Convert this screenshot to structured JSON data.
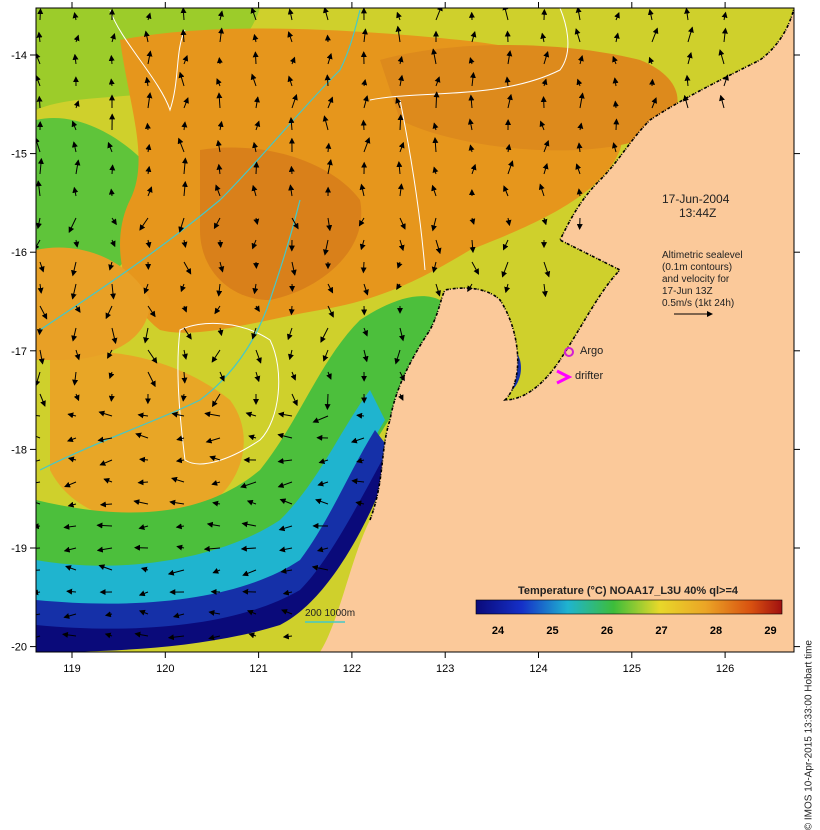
{
  "map": {
    "date": "17-Jun-2004",
    "time": "13:44Z",
    "altimetry_note": [
      "Altimetric sealevel",
      "(0.1m contours)",
      "and velocity for",
      "17-Jun 13Z",
      "0.5m/s (1kt 24h)"
    ],
    "legend_argo": "Argo",
    "legend_drifter": "drifter",
    "isobath_label": "200 1000m",
    "colorbar_title": "Temperature (°C) NOAA17_L3U 40% ql>=4",
    "colorbar_ticks": [
      "24",
      "25",
      "26",
      "27",
      "28",
      "29"
    ],
    "x_ticks": [
      "119",
      "120",
      "121",
      "122",
      "123",
      "124",
      "125",
      "126"
    ],
    "y_ticks": [
      "-14",
      "-15",
      "-16",
      "-17",
      "-18",
      "-19",
      "-20"
    ],
    "credit": "© IMOS 10-Apr-2015 13:33:00 Hobart time",
    "colors": {
      "land": "#fbc99a",
      "warm": "#e08a1a",
      "warm2": "#eba526",
      "mid": "#e8c22a",
      "green": "#3dbd3a",
      "cyan": "#1fb4cf",
      "blue": "#1530a8",
      "deep": "#0a0a7a",
      "isobath": "#45c8c8",
      "argo": "#d21fd2",
      "drifter": "#ff00ff"
    }
  }
}
